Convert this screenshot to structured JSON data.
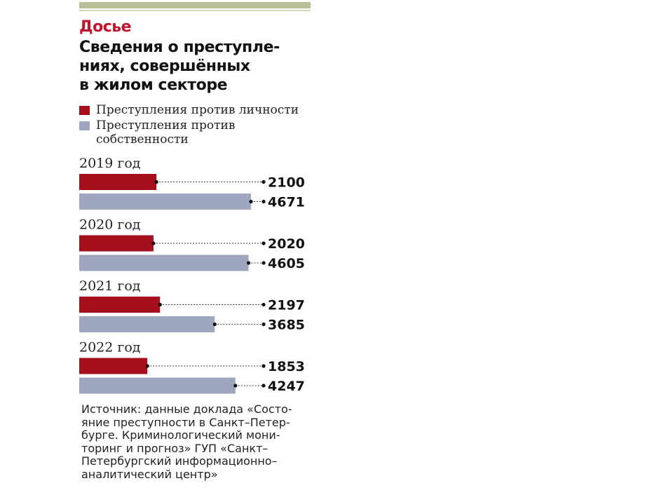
{
  "header": {
    "kicker": "Досье",
    "title_lines": [
      "Сведения о преступле-",
      "ниях, совершённых",
      "в жилом секторе"
    ]
  },
  "legend": {
    "items": [
      {
        "label_lines": [
          "Преступления против личности"
        ],
        "color": "#a50f1c"
      },
      {
        "label_lines": [
          "Преступления против",
          "собственности"
        ],
        "color": "#9ea6c0"
      }
    ]
  },
  "chart_data": {
    "type": "bar",
    "orientation": "horizontal",
    "categories": [
      "2019 год",
      "2020 год",
      "2021 год",
      "2022 год"
    ],
    "series": [
      {
        "name": "Преступления против личности",
        "color": "#a50f1c",
        "values": [
          2100,
          2020,
          2197,
          1853
        ]
      },
      {
        "name": "Преступления против собственности",
        "color": "#9ea6c0",
        "values": [
          4671,
          4605,
          3685,
          4247
        ]
      }
    ],
    "title": "Сведения о преступлениях, совершённых в жилом секторе",
    "xlabel": "",
    "ylabel": "",
    "grid": false,
    "legend_position": "top"
  },
  "source": {
    "lines": [
      "Источник: данные доклада «Состо-",
      "яние преступности в Санкт–Петер-",
      "бурге. Криминологический мони-",
      "торинг и прогноз» ГУП «Санкт–",
      "Петербургский информационно–",
      "аналитический центр»"
    ]
  }
}
